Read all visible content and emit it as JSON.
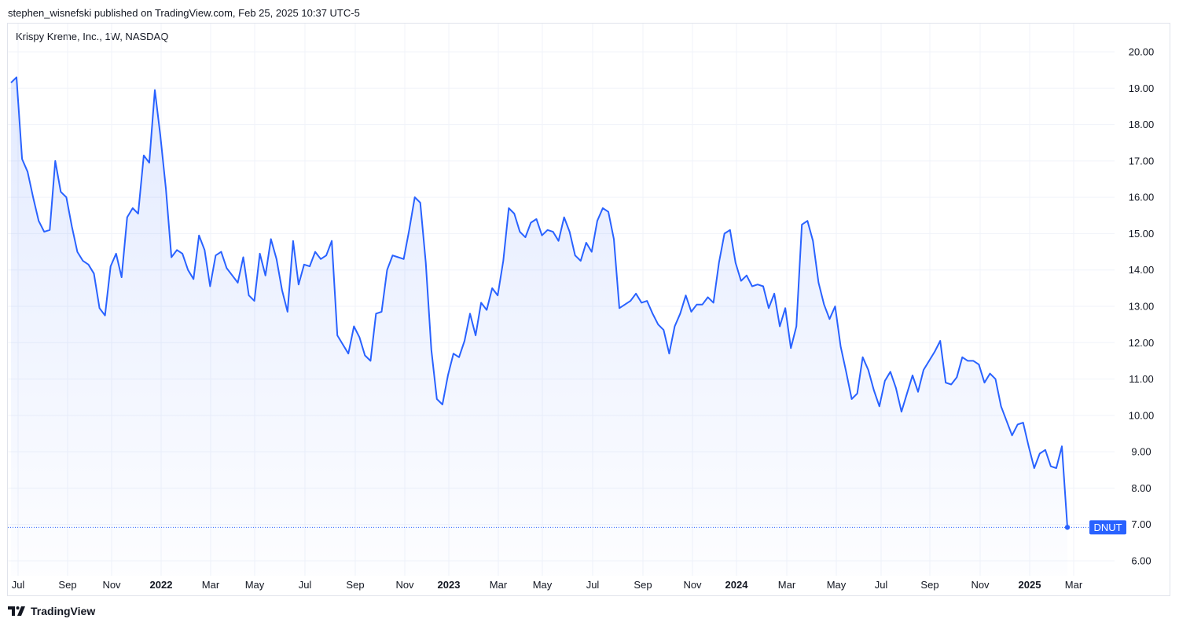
{
  "header": {
    "attribution": "stephen_wisnefski published on TradingView.com, Feb 25, 2025 10:37 UTC-5"
  },
  "chart_data": {
    "type": "area",
    "title": "Krispy Kreme, Inc., 1W, NASDAQ",
    "symbol_label": "DNUT",
    "y_ticks": [
      "20.00",
      "19.00",
      "18.00",
      "17.00",
      "16.00",
      "15.00",
      "14.00",
      "13.00",
      "12.00",
      "11.00",
      "10.00",
      "9.00",
      "8.00",
      "7.00",
      "6.00"
    ],
    "ylim": [
      6.0,
      20.0
    ],
    "x_ticks": [
      {
        "label": "Jul",
        "bold": false
      },
      {
        "label": "Sep",
        "bold": false
      },
      {
        "label": "Nov",
        "bold": false
      },
      {
        "label": "2022",
        "bold": true
      },
      {
        "label": "Mar",
        "bold": false
      },
      {
        "label": "May",
        "bold": false
      },
      {
        "label": "Jul",
        "bold": false
      },
      {
        "label": "Sep",
        "bold": false
      },
      {
        "label": "Nov",
        "bold": false
      },
      {
        "label": "2023",
        "bold": true
      },
      {
        "label": "Mar",
        "bold": false
      },
      {
        "label": "May",
        "bold": false
      },
      {
        "label": "Jul",
        "bold": false
      },
      {
        "label": "Sep",
        "bold": false
      },
      {
        "label": "Nov",
        "bold": false
      },
      {
        "label": "2024",
        "bold": true
      },
      {
        "label": "Mar",
        "bold": false
      },
      {
        "label": "May",
        "bold": false
      },
      {
        "label": "Jul",
        "bold": false
      },
      {
        "label": "Sep",
        "bold": false
      },
      {
        "label": "Nov",
        "bold": false
      },
      {
        "label": "2025",
        "bold": true
      },
      {
        "label": "Mar",
        "bold": false
      }
    ],
    "series": [
      {
        "values": [
          19.15,
          19.3,
          17.05,
          16.7,
          16.0,
          15.35,
          15.05,
          15.1,
          17.0,
          16.15,
          16.0,
          15.2,
          14.5,
          14.25,
          14.15,
          13.9,
          12.95,
          12.75,
          14.1,
          14.45,
          13.8,
          15.45,
          15.7,
          15.55,
          17.15,
          16.95,
          18.95,
          17.7,
          16.25,
          14.35,
          14.55,
          14.45,
          14.0,
          13.75,
          14.95,
          14.55,
          13.55,
          14.4,
          14.5,
          14.05,
          13.85,
          13.65,
          14.35,
          13.3,
          13.15,
          14.45,
          13.85,
          14.85,
          14.3,
          13.45,
          12.85,
          14.8,
          13.6,
          14.15,
          14.1,
          14.5,
          14.3,
          14.4,
          14.8,
          12.2,
          11.95,
          11.7,
          12.45,
          12.15,
          11.65,
          11.5,
          12.8,
          12.85,
          14.0,
          14.4,
          14.35,
          14.3,
          15.1,
          16.0,
          15.85,
          14.2,
          11.8,
          10.45,
          10.3,
          11.1,
          11.7,
          11.6,
          12.05,
          12.8,
          12.2,
          13.1,
          12.9,
          13.5,
          13.3,
          14.25,
          15.7,
          15.55,
          15.05,
          14.9,
          15.3,
          15.4,
          14.95,
          15.1,
          15.05,
          14.8,
          15.45,
          15.05,
          14.4,
          14.25,
          14.75,
          14.5,
          15.35,
          15.7,
          15.6,
          14.85,
          12.95,
          13.05,
          13.15,
          13.35,
          13.1,
          13.15,
          12.8,
          12.5,
          12.35,
          11.7,
          12.45,
          12.8,
          13.3,
          12.85,
          13.05,
          13.05,
          13.25,
          13.1,
          14.2,
          15.0,
          15.1,
          14.2,
          13.7,
          13.85,
          13.55,
          13.6,
          13.55,
          12.95,
          13.35,
          12.45,
          12.95,
          11.85,
          12.45,
          15.25,
          15.35,
          14.8,
          13.65,
          13.05,
          12.65,
          13.0,
          11.9,
          11.2,
          10.45,
          10.6,
          11.6,
          11.25,
          10.7,
          10.25,
          10.95,
          11.2,
          10.75,
          10.1,
          10.6,
          11.1,
          10.65,
          11.25,
          11.5,
          11.75,
          12.05,
          10.9,
          10.85,
          11.05,
          11.6,
          11.5,
          11.5,
          11.4,
          10.9,
          11.15,
          11.0,
          10.25,
          9.85,
          9.45,
          9.75,
          9.8,
          9.15,
          8.55,
          8.95,
          9.05,
          8.6,
          8.55,
          9.15,
          6.92
        ]
      }
    ],
    "last_value": 6.92,
    "colors": {
      "line": "#2962ff",
      "label_bg": "#2962ff",
      "grid": "#f0f3fa",
      "text": "#131722"
    }
  },
  "footer": {
    "brand": "TradingView"
  }
}
